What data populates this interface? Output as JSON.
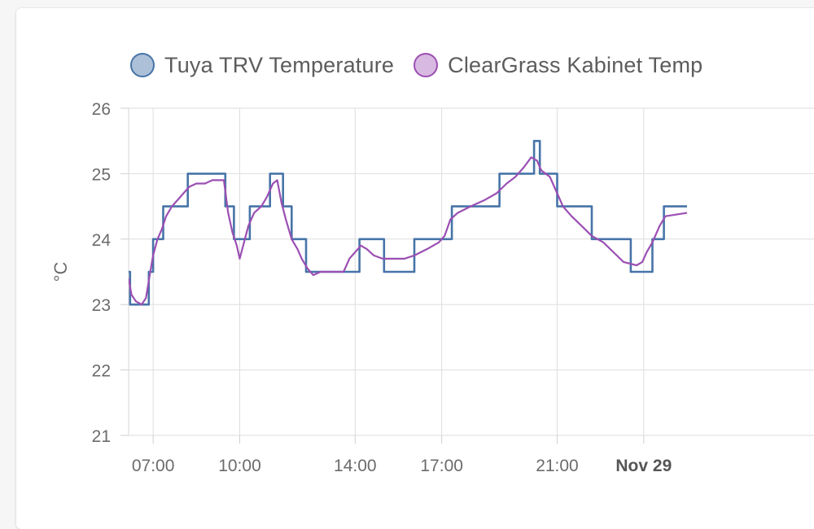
{
  "chart_data": {
    "type": "line",
    "title": "",
    "xlabel": "",
    "ylabel": "°C",
    "ylim": [
      21,
      26
    ],
    "yticks": [
      21,
      22,
      23,
      24,
      25,
      26
    ],
    "xlim": [
      6.15,
      29.9
    ],
    "x_unit": "hour of day (values past 24 are the following day)",
    "xticks": [
      {
        "value": 7,
        "label": "07:00",
        "bold": false
      },
      {
        "value": 10,
        "label": "10:00",
        "bold": false
      },
      {
        "value": 14,
        "label": "14:00",
        "bold": false
      },
      {
        "value": 17,
        "label": "17:00",
        "bold": false
      },
      {
        "value": 21,
        "label": "21:00",
        "bold": false
      },
      {
        "value": 24,
        "label": "Nov 29",
        "bold": true
      }
    ],
    "grid": true,
    "legend_position": "top",
    "series": [
      {
        "name": "Tuya TRV Temperature",
        "color": "#4774a8",
        "fill": "rgba(71,116,168,0.45)",
        "step": true,
        "points": [
          [
            6.15,
            23.5
          ],
          [
            6.2,
            23.0
          ],
          [
            6.85,
            23.5
          ],
          [
            7.0,
            24.0
          ],
          [
            7.35,
            24.5
          ],
          [
            8.2,
            25.0
          ],
          [
            9.5,
            24.5
          ],
          [
            9.8,
            24.0
          ],
          [
            10.35,
            24.5
          ],
          [
            11.05,
            25.0
          ],
          [
            11.5,
            24.5
          ],
          [
            11.8,
            24.0
          ],
          [
            12.3,
            23.5
          ],
          [
            14.15,
            24.0
          ],
          [
            15.0,
            23.5
          ],
          [
            16.05,
            24.0
          ],
          [
            17.35,
            24.5
          ],
          [
            19.0,
            25.0
          ],
          [
            20.2,
            25.5
          ],
          [
            20.4,
            25.0
          ],
          [
            21.0,
            24.5
          ],
          [
            22.2,
            24.0
          ],
          [
            23.55,
            23.5
          ],
          [
            24.3,
            24.0
          ],
          [
            24.7,
            24.5
          ],
          [
            25.5,
            24.5
          ]
        ]
      },
      {
        "name": "ClearGrass Kabinet Temp",
        "color": "#9b4fb3",
        "fill": "rgba(184,128,200,0.55)",
        "step": false,
        "points": [
          [
            6.15,
            23.4
          ],
          [
            6.25,
            23.15
          ],
          [
            6.4,
            23.05
          ],
          [
            6.6,
            23.0
          ],
          [
            6.75,
            23.1
          ],
          [
            6.9,
            23.5
          ],
          [
            7.0,
            23.75
          ],
          [
            7.15,
            24.0
          ],
          [
            7.3,
            24.15
          ],
          [
            7.45,
            24.35
          ],
          [
            7.65,
            24.5
          ],
          [
            7.85,
            24.6
          ],
          [
            8.05,
            24.7
          ],
          [
            8.25,
            24.8
          ],
          [
            8.5,
            24.85
          ],
          [
            8.8,
            24.85
          ],
          [
            9.05,
            24.9
          ],
          [
            9.3,
            24.9
          ],
          [
            9.45,
            24.9
          ],
          [
            9.6,
            24.4
          ],
          [
            9.75,
            24.1
          ],
          [
            9.9,
            23.9
          ],
          [
            10.0,
            23.7
          ],
          [
            10.15,
            23.95
          ],
          [
            10.3,
            24.2
          ],
          [
            10.5,
            24.4
          ],
          [
            10.75,
            24.5
          ],
          [
            10.95,
            24.65
          ],
          [
            11.15,
            24.85
          ],
          [
            11.3,
            24.9
          ],
          [
            11.45,
            24.55
          ],
          [
            11.6,
            24.3
          ],
          [
            11.8,
            24.0
          ],
          [
            12.0,
            23.85
          ],
          [
            12.15,
            23.7
          ],
          [
            12.35,
            23.55
          ],
          [
            12.55,
            23.45
          ],
          [
            12.8,
            23.5
          ],
          [
            13.2,
            23.5
          ],
          [
            13.6,
            23.5
          ],
          [
            13.8,
            23.7
          ],
          [
            14.0,
            23.8
          ],
          [
            14.2,
            23.9
          ],
          [
            14.4,
            23.85
          ],
          [
            14.65,
            23.75
          ],
          [
            14.95,
            23.7
          ],
          [
            15.3,
            23.7
          ],
          [
            15.7,
            23.7
          ],
          [
            16.05,
            23.75
          ],
          [
            16.5,
            23.85
          ],
          [
            16.9,
            23.95
          ],
          [
            17.1,
            24.05
          ],
          [
            17.3,
            24.3
          ],
          [
            17.55,
            24.4
          ],
          [
            18.0,
            24.5
          ],
          [
            18.5,
            24.6
          ],
          [
            18.9,
            24.7
          ],
          [
            19.25,
            24.85
          ],
          [
            19.55,
            24.95
          ],
          [
            19.85,
            25.1
          ],
          [
            20.1,
            25.25
          ],
          [
            20.3,
            25.2
          ],
          [
            20.45,
            25.05
          ],
          [
            20.75,
            24.95
          ],
          [
            20.95,
            24.75
          ],
          [
            21.2,
            24.5
          ],
          [
            21.5,
            24.35
          ],
          [
            21.85,
            24.2
          ],
          [
            22.2,
            24.05
          ],
          [
            22.6,
            23.95
          ],
          [
            22.95,
            23.8
          ],
          [
            23.3,
            23.65
          ],
          [
            23.75,
            23.6
          ],
          [
            23.95,
            23.65
          ],
          [
            24.1,
            23.8
          ],
          [
            24.3,
            23.95
          ],
          [
            24.55,
            24.2
          ],
          [
            24.75,
            24.35
          ],
          [
            25.5,
            24.4
          ]
        ]
      }
    ]
  }
}
